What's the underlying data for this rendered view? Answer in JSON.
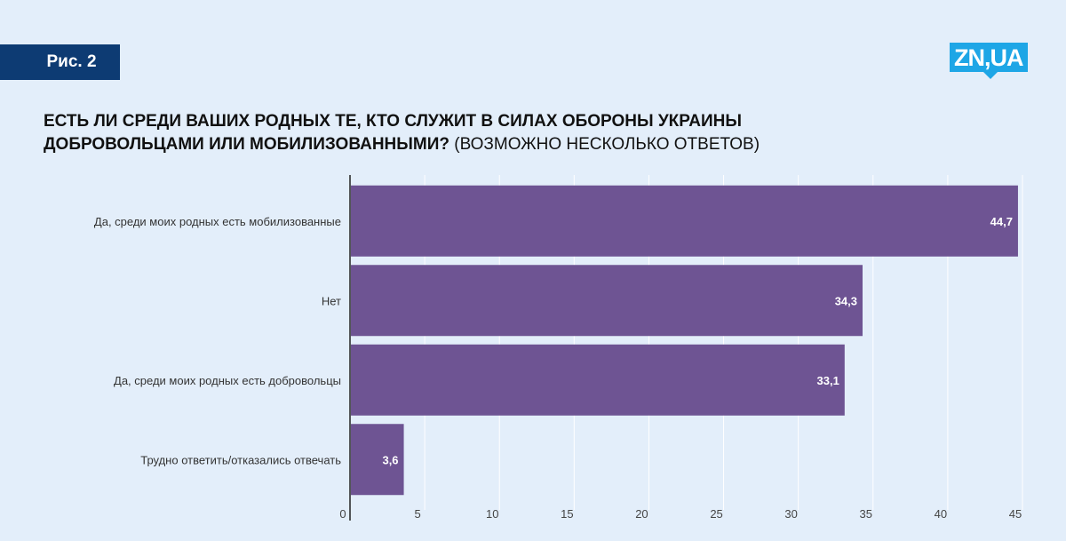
{
  "figure_label": "Рис. 2",
  "logo_text": "ZN,UA",
  "title_bold_line1": "ЕСТЬ ЛИ СРЕДИ ВАШИХ РОДНЫХ ТЕ, КТО СЛУЖИТ В СИЛАХ ОБОРОНЫ УКРАИНЫ",
  "title_bold_line2": "ДОБРОВОЛЬЦАМИ ИЛИ МОБИЛИЗОВАННЫМИ?",
  "title_normal": "(ВОЗМОЖНО НЕСКОЛЬКО ОТВЕТОВ)",
  "colors": {
    "bar": "#6e5493",
    "badge": "#0d3b73",
    "logo": "#1ea6e6",
    "background": "#e3eefa"
  },
  "chart_data": {
    "type": "bar",
    "orientation": "horizontal",
    "categories": [
      "Да, среди моих родных есть мобилизованные",
      "Нет",
      "Да, среди моих родных есть добровольцы",
      "Трудно ответить/отказались отвечать"
    ],
    "values": [
      44.7,
      34.3,
      33.1,
      3.6
    ],
    "value_labels": [
      "44,7",
      "34,3",
      "33,1",
      "3,6"
    ],
    "xlim": [
      0,
      45
    ],
    "xticks": [
      0,
      5,
      10,
      15,
      20,
      25,
      30,
      35,
      40,
      45
    ],
    "grid": true
  }
}
